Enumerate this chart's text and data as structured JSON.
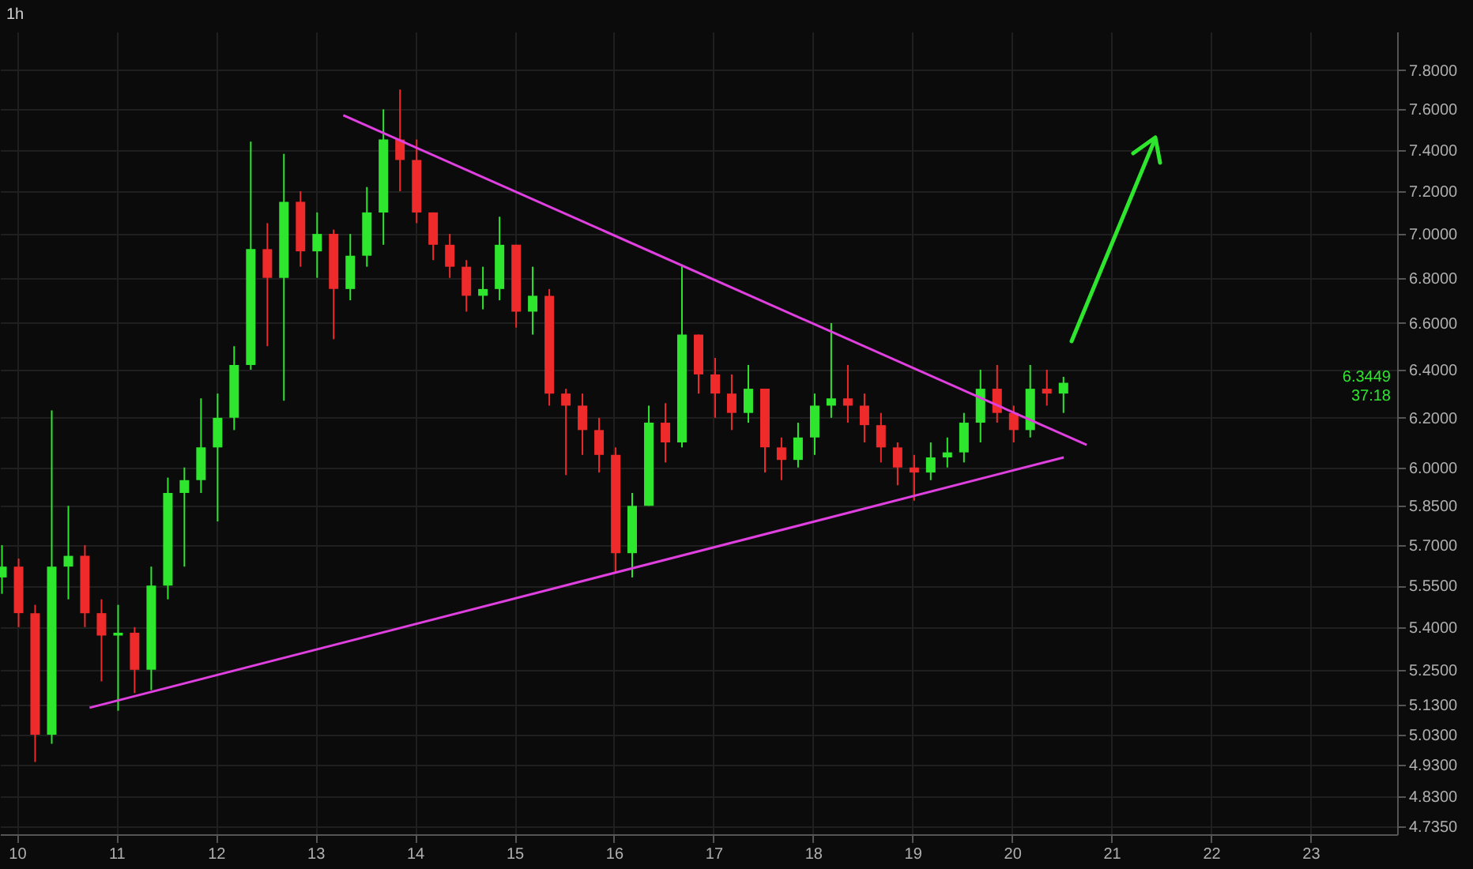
{
  "chart_data": {
    "type": "candlestick",
    "title": "1h",
    "x": [
      9.85,
      10.017,
      10.183,
      10.35,
      10.517,
      10.683,
      10.85,
      11.017,
      11.183,
      11.35,
      11.517,
      11.683,
      11.85,
      12.017,
      12.183,
      12.35,
      12.517,
      12.683,
      12.85,
      13.017,
      13.183,
      13.35,
      13.517,
      13.683,
      13.85,
      14.017,
      14.183,
      14.35,
      14.517,
      14.683,
      14.85,
      15.017,
      15.183,
      15.35,
      15.517,
      15.683,
      15.85,
      16.017,
      16.183,
      16.35,
      16.517,
      16.683,
      16.85,
      17.017,
      17.183,
      17.35,
      17.517,
      17.683,
      17.85,
      18.017,
      18.183,
      18.35,
      18.517,
      18.683,
      18.85,
      19.017,
      19.183,
      19.35,
      19.517,
      19.683,
      19.85,
      20.017,
      20.183,
      20.35,
      20.517
    ],
    "ohlc": [
      [
        5.58,
        5.7,
        5.52,
        5.62
      ],
      [
        5.62,
        5.65,
        5.4,
        5.45
      ],
      [
        5.45,
        5.48,
        4.94,
        5.03
      ],
      [
        5.03,
        6.23,
        5.0,
        5.62
      ],
      [
        5.62,
        5.85,
        5.5,
        5.66
      ],
      [
        5.66,
        5.7,
        5.4,
        5.45
      ],
      [
        5.45,
        5.5,
        5.21,
        5.37
      ],
      [
        5.37,
        5.48,
        5.11,
        5.38
      ],
      [
        5.38,
        5.4,
        5.17,
        5.25
      ],
      [
        5.25,
        5.62,
        5.18,
        5.55
      ],
      [
        5.55,
        5.96,
        5.5,
        5.9
      ],
      [
        5.9,
        6.0,
        5.62,
        5.95
      ],
      [
        5.95,
        6.28,
        5.9,
        6.08
      ],
      [
        6.08,
        6.3,
        5.79,
        6.2
      ],
      [
        6.2,
        6.5,
        6.15,
        6.42
      ],
      [
        6.42,
        7.44,
        6.4,
        6.93
      ],
      [
        6.93,
        7.05,
        6.5,
        6.8
      ],
      [
        6.8,
        7.38,
        6.27,
        7.15
      ],
      [
        7.15,
        7.2,
        6.85,
        6.92
      ],
      [
        6.92,
        7.1,
        6.8,
        7.0
      ],
      [
        7.0,
        7.02,
        6.53,
        6.75
      ],
      [
        6.75,
        7.0,
        6.7,
        6.9
      ],
      [
        6.9,
        7.22,
        6.85,
        7.1
      ],
      [
        7.1,
        7.6,
        6.95,
        7.45
      ],
      [
        7.45,
        7.7,
        7.2,
        7.35
      ],
      [
        7.35,
        7.45,
        7.05,
        7.1
      ],
      [
        7.1,
        7.1,
        6.88,
        6.95
      ],
      [
        6.95,
        7.0,
        6.8,
        6.85
      ],
      [
        6.85,
        6.88,
        6.65,
        6.72
      ],
      [
        6.72,
        6.85,
        6.66,
        6.75
      ],
      [
        6.75,
        7.08,
        6.7,
        6.95
      ],
      [
        6.95,
        6.95,
        6.58,
        6.65
      ],
      [
        6.65,
        6.85,
        6.55,
        6.72
      ],
      [
        6.72,
        6.75,
        6.25,
        6.3
      ],
      [
        6.3,
        6.32,
        5.97,
        6.25
      ],
      [
        6.25,
        6.3,
        6.05,
        6.15
      ],
      [
        6.15,
        6.2,
        5.98,
        6.05
      ],
      [
        6.05,
        6.08,
        5.6,
        5.67
      ],
      [
        5.67,
        5.9,
        5.58,
        5.85
      ],
      [
        5.85,
        6.25,
        5.85,
        6.18
      ],
      [
        6.18,
        6.26,
        6.02,
        6.1
      ],
      [
        6.1,
        6.86,
        6.08,
        6.55
      ],
      [
        6.55,
        6.55,
        6.3,
        6.38
      ],
      [
        6.38,
        6.45,
        6.2,
        6.3
      ],
      [
        6.3,
        6.38,
        6.15,
        6.22
      ],
      [
        6.22,
        6.42,
        6.18,
        6.32
      ],
      [
        6.32,
        6.32,
        5.98,
        6.08
      ],
      [
        6.08,
        6.12,
        5.95,
        6.03
      ],
      [
        6.03,
        6.18,
        6.0,
        6.12
      ],
      [
        6.12,
        6.3,
        6.05,
        6.25
      ],
      [
        6.25,
        6.6,
        6.2,
        6.28
      ],
      [
        6.28,
        6.42,
        6.18,
        6.25
      ],
      [
        6.25,
        6.3,
        6.1,
        6.17
      ],
      [
        6.17,
        6.22,
        6.02,
        6.08
      ],
      [
        6.08,
        6.1,
        5.93,
        6.0
      ],
      [
        6.0,
        6.05,
        5.87,
        5.98
      ],
      [
        5.98,
        6.1,
        5.95,
        6.04
      ],
      [
        6.04,
        6.12,
        6.0,
        6.06
      ],
      [
        6.06,
        6.22,
        6.02,
        6.18
      ],
      [
        6.18,
        6.4,
        6.1,
        6.32
      ],
      [
        6.32,
        6.42,
        6.18,
        6.22
      ],
      [
        6.22,
        6.25,
        6.1,
        6.15
      ],
      [
        6.15,
        6.42,
        6.12,
        6.32
      ],
      [
        6.32,
        6.4,
        6.25,
        6.3
      ],
      [
        6.3,
        6.37,
        6.22,
        6.3449
      ]
    ],
    "colors": [
      "#2ee62e",
      "#ee2a2a",
      "#ee2a2a",
      "#2ee62e",
      "#2ee62e",
      "#ee2a2a",
      "#ee2a2a",
      "#2ee62e",
      "#ee2a2a",
      "#2ee62e",
      "#2ee62e",
      "#2ee62e",
      "#2ee62e",
      "#2ee62e",
      "#2ee62e",
      "#2ee62e",
      "#ee2a2a",
      "#2ee62e",
      "#ee2a2a",
      "#2ee62e",
      "#ee2a2a",
      "#2ee62e",
      "#2ee62e",
      "#2ee62e",
      "#ee2a2a",
      "#ee2a2a",
      "#ee2a2a",
      "#ee2a2a",
      "#ee2a2a",
      "#2ee62e",
      "#2ee62e",
      "#ee2a2a",
      "#2ee62e",
      "#ee2a2a",
      "#ee2a2a",
      "#ee2a2a",
      "#ee2a2a",
      "#ee2a2a",
      "#2ee62e",
      "#2ee62e",
      "#ee2a2a",
      "#2ee62e",
      "#ee2a2a",
      "#ee2a2a",
      "#ee2a2a",
      "#2ee62e",
      "#ee2a2a",
      "#ee2a2a",
      "#2ee62e",
      "#2ee62e",
      "#2ee62e",
      "#ee2a2a",
      "#ee2a2a",
      "#ee2a2a",
      "#ee2a2a",
      "#ee2a2a",
      "#2ee62e",
      "#2ee62e",
      "#2ee62e",
      "#2ee62e",
      "#ee2a2a",
      "#ee2a2a",
      "#2ee62e",
      "#ee2a2a",
      "#2ee62e"
    ],
    "series": [
      {
        "type": "line",
        "color": "#e040e0",
        "x": [
          13.28,
          20.75
        ],
        "values": [
          7.57,
          6.09
        ]
      },
      {
        "type": "line",
        "color": "#e040e0",
        "x": [
          10.73,
          20.52
        ],
        "values": [
          5.12,
          6.04
        ]
      }
    ],
    "log": "y",
    "grid": true,
    "xlim": [
      9.83,
      23.87
    ],
    "xticks": [
      10,
      11,
      12,
      13,
      14,
      15,
      16,
      17,
      18,
      19,
      20,
      21,
      22,
      23
    ],
    "ylim": [
      4.71,
      8.0
    ],
    "yticks": [
      {
        "value": 4.735,
        "label": "4.7350"
      },
      {
        "value": 4.83,
        "label": "4.8300"
      },
      {
        "value": 4.93,
        "label": "4.9300"
      },
      {
        "value": 5.03,
        "label": "5.0300"
      },
      {
        "value": 5.13,
        "label": "5.1300"
      },
      {
        "value": 5.25,
        "label": "5.2500"
      },
      {
        "value": 5.4,
        "label": "5.4000"
      },
      {
        "value": 5.55,
        "label": "5.5500"
      },
      {
        "value": 5.7,
        "label": "5.7000"
      },
      {
        "value": 5.85,
        "label": "5.8500"
      },
      {
        "value": 6.0,
        "label": "6.0000"
      },
      {
        "value": 6.2,
        "label": "6.2000"
      },
      {
        "value": 6.4,
        "label": "6.4000"
      },
      {
        "value": 6.6,
        "label": "6.6000"
      },
      {
        "value": 6.8,
        "label": "6.8000"
      },
      {
        "value": 7.0,
        "label": "7.0000"
      },
      {
        "value": 7.2,
        "label": "7.2000"
      },
      {
        "value": 7.4,
        "label": "7.4000"
      },
      {
        "value": 7.6,
        "label": "7.6000"
      },
      {
        "value": 7.8,
        "label": "7.8000"
      }
    ],
    "annotations": [
      "6.3449",
      "37:18"
    ]
  }
}
